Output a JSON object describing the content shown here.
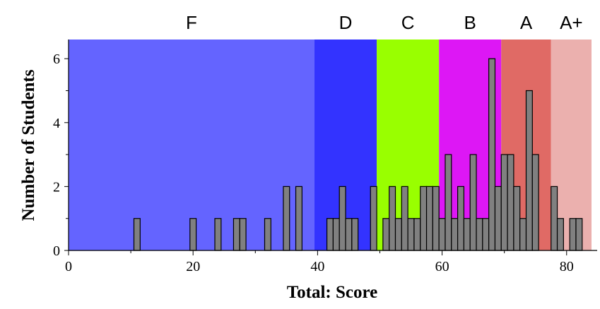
{
  "chart_data": {
    "type": "bar",
    "title": "",
    "xlabel": "Total: Score",
    "ylabel": "Number of Students",
    "xlim": [
      0,
      84
    ],
    "ylim": [
      0,
      6.6
    ],
    "xticks": [
      0,
      20,
      40,
      60,
      80
    ],
    "yticks": [
      0,
      2,
      4,
      6
    ],
    "grid": false,
    "grade_bands": [
      {
        "label": "F",
        "from": 0,
        "to": 39.5,
        "color": "#6464ff"
      },
      {
        "label": "D",
        "from": 39.5,
        "to": 49.5,
        "color": "#3333ff"
      },
      {
        "label": "C",
        "from": 49.5,
        "to": 59.5,
        "color": "#99ff00"
      },
      {
        "label": "B",
        "from": 59.5,
        "to": 69.5,
        "color": "#dd17f5"
      },
      {
        "label": "A",
        "from": 69.5,
        "to": 77.5,
        "color": "#e06a65"
      },
      {
        "label": "A+",
        "from": 77.5,
        "to": 84,
        "color": "#ebb0ae"
      }
    ],
    "bar_color": "#808080",
    "x": [
      11,
      20,
      24,
      27,
      28,
      32,
      35,
      37,
      42,
      43,
      44,
      45,
      46,
      49,
      51,
      52,
      53,
      54,
      55,
      56,
      57,
      58,
      59,
      60,
      61,
      62,
      63,
      64,
      65,
      66,
      67,
      68,
      69,
      70,
      71,
      72,
      73,
      74,
      75,
      78,
      79,
      81,
      82
    ],
    "values": [
      1,
      1,
      1,
      1,
      1,
      1,
      2,
      2,
      1,
      1,
      2,
      1,
      1,
      2,
      1,
      2,
      1,
      2,
      1,
      1,
      2,
      2,
      2,
      1,
      3,
      1,
      2,
      1,
      3,
      1,
      1,
      6,
      2,
      3,
      3,
      2,
      1,
      5,
      3,
      2,
      1,
      1,
      1
    ]
  }
}
